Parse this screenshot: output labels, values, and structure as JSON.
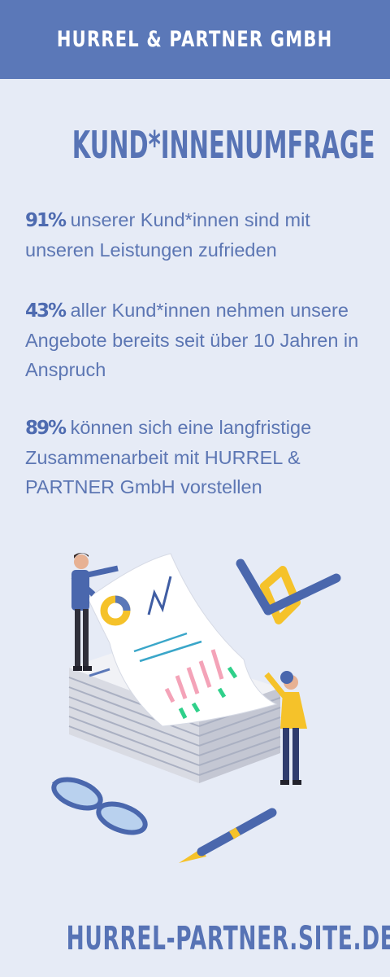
{
  "header": {
    "title": "HURREL & PARTNER GMBH"
  },
  "main": {
    "title": "KUND*INNENUMFRAGE",
    "stats": [
      {
        "percent": "91%",
        "text": "unserer Kund*innen sind mit unseren Leistungen zufrieden"
      },
      {
        "percent": "43%",
        "text": "aller Kund*innen nehmen unsere Angebote bereits seit über 10 Jahren in Anspruch"
      },
      {
        "percent": "89%",
        "text": "können sich eine langfristige Zusammenarbeit mit HURREL & PARTNER GmbH vorstellen"
      }
    ]
  },
  "illustration": {
    "icon": "survey-report-illustration"
  },
  "footer": {
    "url": "HURREL-PARTNER.SITE.DE"
  },
  "colors": {
    "background": "#e6ebf6",
    "header": "#5b78b8",
    "primary_text": "#5773b5",
    "accent_yellow": "#f5c22a",
    "accent_pink": "#f4a3b8",
    "accent_green": "#2fd08a"
  }
}
